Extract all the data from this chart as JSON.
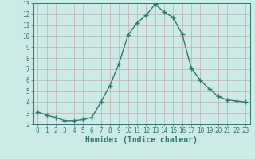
{
  "x": [
    0,
    1,
    2,
    3,
    4,
    5,
    6,
    7,
    8,
    9,
    10,
    11,
    12,
    13,
    14,
    15,
    16,
    17,
    18,
    19,
    20,
    21,
    22,
    23
  ],
  "y": [
    3.1,
    2.8,
    2.6,
    2.3,
    2.3,
    2.4,
    2.6,
    4.0,
    5.5,
    7.5,
    10.1,
    11.2,
    11.9,
    12.9,
    12.2,
    11.7,
    10.2,
    7.1,
    6.0,
    5.2,
    4.5,
    4.2,
    4.1,
    4.0
  ],
  "line_color": "#2d7a6e",
  "marker": "+",
  "marker_size": 4,
  "line_width": 1.0,
  "bg_color": "#cceae6",
  "grid_color": "#b0d4d0",
  "xlabel": "Humidex (Indice chaleur)",
  "xlim": [
    -0.5,
    23.5
  ],
  "ylim": [
    2,
    13
  ],
  "yticks": [
    2,
    3,
    4,
    5,
    6,
    7,
    8,
    9,
    10,
    11,
    12,
    13
  ],
  "xticks": [
    0,
    1,
    2,
    3,
    4,
    5,
    6,
    7,
    8,
    9,
    10,
    11,
    12,
    13,
    14,
    15,
    16,
    17,
    18,
    19,
    20,
    21,
    22,
    23
  ],
  "tick_fontsize": 5.5,
  "xlabel_fontsize": 7.0
}
